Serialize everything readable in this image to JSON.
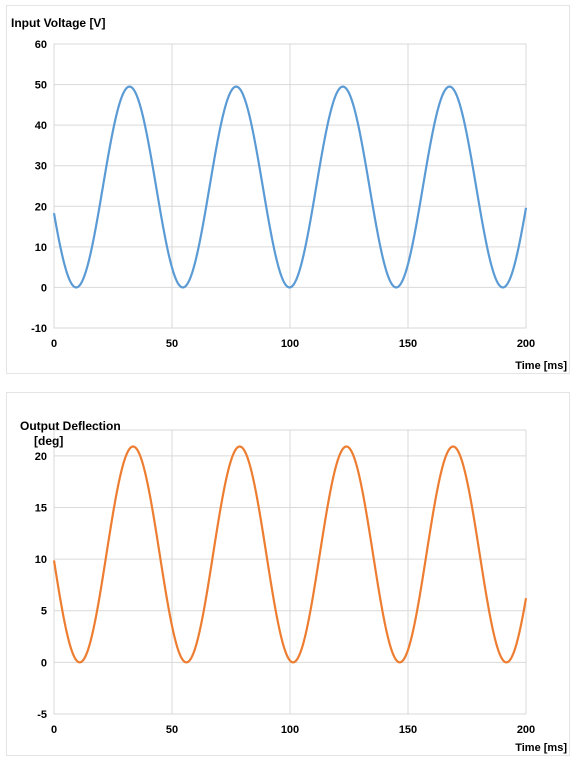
{
  "colors": {
    "voltage": "#5b9bd5",
    "deflection": "#ed7d31",
    "grid": "#d9d9d9"
  },
  "chart_data": [
    {
      "type": "line",
      "title": "Input Voltage  [V]",
      "xlabel": "Time [ms]",
      "ylabel": "",
      "xlim": [
        0,
        200
      ],
      "ylim": [
        -10,
        60
      ],
      "x_ticks": [
        0,
        50,
        100,
        150,
        200
      ],
      "y_ticks": [
        -10,
        0,
        10,
        20,
        30,
        40,
        50,
        60
      ],
      "grid": true,
      "waveform": {
        "offset": 24.75,
        "amplitude": 24.75,
        "period_ms": 45.2,
        "first_peak_ms": 32
      },
      "series": [
        {
          "x": [
            0,
            5,
            10,
            15,
            20,
            25,
            32,
            40,
            45,
            50,
            55,
            60,
            65,
            70,
            77,
            85,
            90,
            95,
            100,
            105,
            110,
            115,
            122,
            130,
            135,
            140,
            145,
            150,
            155,
            160,
            168,
            175,
            180,
            185,
            190,
            195,
            200
          ],
          "y": [
            17,
            5,
            0,
            4,
            17,
            35,
            49.5,
            38,
            20,
            6,
            0,
            5,
            18,
            35,
            49.5,
            37,
            20,
            5,
            0,
            5,
            18,
            35,
            49.5,
            37,
            20,
            5,
            0,
            5,
            18,
            36,
            49.5,
            40,
            23,
            8,
            0,
            6,
            18
          ]
        }
      ]
    },
    {
      "type": "line",
      "title": "Output Deflection",
      "title_line2": "[deg]",
      "xlabel": "Time [ms]",
      "ylabel": "",
      "xlim": [
        0,
        200
      ],
      "ylim": [
        -5,
        22.5
      ],
      "x_ticks": [
        0,
        50,
        100,
        150,
        200
      ],
      "y_ticks": [
        -5,
        0,
        5,
        10,
        15,
        20
      ],
      "grid": true,
      "waveform": {
        "offset": 10.45,
        "amplitude": 10.45,
        "period_ms": 45.2,
        "first_peak_ms": 33.5
      },
      "series": [
        {
          "x": [
            0,
            5,
            11,
            15,
            20,
            25,
            33.5,
            40,
            45,
            50,
            56,
            60,
            65,
            70,
            79,
            85,
            90,
            95,
            101,
            105,
            110,
            115,
            124,
            130,
            135,
            140,
            147,
            150,
            155,
            160,
            169,
            175,
            180,
            185,
            192,
            195,
            200
          ],
          "y": [
            9.5,
            2.5,
            0,
            1.5,
            7,
            15,
            20.8,
            16,
            9,
            3,
            0,
            1.5,
            7,
            15,
            20.8,
            16,
            9,
            3,
            0,
            1.5,
            7,
            15,
            20.8,
            16,
            9,
            3,
            0,
            1.5,
            7,
            15,
            20.8,
            16,
            9,
            3,
            0,
            1,
            5.5
          ]
        }
      ]
    }
  ]
}
